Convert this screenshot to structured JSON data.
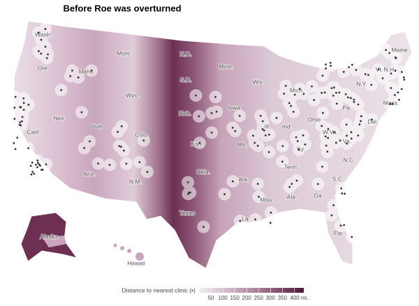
{
  "title": "Before Roe was overturned",
  "state_labels": [
    "Wash.",
    "Ore.",
    "Calif.",
    "Nev.",
    "Idaho",
    "Mont.",
    "Wyo.",
    "Utah",
    "Colo.",
    "Ariz.",
    "N.M.",
    "N.D.",
    "S.D.",
    "Neb.",
    "Kan.",
    "Okla.",
    "Texas",
    "Minn.",
    "Iowa",
    "Mo.",
    "Ark.",
    "La.",
    "Wis.",
    "Ill.",
    "Mich.",
    "Ind.",
    "Ohio",
    "Ky.",
    "Tenn.",
    "Miss.",
    "Ala.",
    "Ga.",
    "Fla.",
    "S.C.",
    "N.C.",
    "Va.",
    "W.Va.",
    "Pa.",
    "N.Y.",
    "Vt.",
    "N.H.",
    "Maine",
    "Mass.",
    "Del.",
    "Alaska",
    "Hawaii"
  ],
  "legend": {
    "title": "Distance to nearest clinic (•)",
    "range": [
      0,
      440
    ],
    "ticks": [
      50,
      100,
      150,
      200,
      250,
      300,
      350,
      {
        "value": 400,
        "label": "400 mi."
      }
    ]
  }
}
